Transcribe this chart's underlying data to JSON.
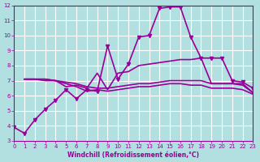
{
  "background_color": "#b2e0e0",
  "grid_color": "#ffffff",
  "line_color": "#990099",
  "xlabel": "Windchill (Refroidissement éolien,°C)",
  "xlim": [
    0,
    23
  ],
  "ylim": [
    3,
    12
  ],
  "xticks": [
    0,
    1,
    2,
    3,
    4,
    5,
    6,
    7,
    8,
    9,
    10,
    11,
    12,
    13,
    14,
    15,
    16,
    17,
    18,
    19,
    20,
    21,
    22,
    23
  ],
  "yticks": [
    3,
    4,
    5,
    6,
    7,
    8,
    9,
    10,
    11,
    12
  ],
  "lines": [
    {
      "x": [
        0,
        1,
        2,
        3,
        4,
        5,
        6,
        7,
        8,
        9,
        10,
        11,
        12,
        13,
        14,
        15,
        16,
        17,
        18,
        19,
        20,
        21,
        22,
        23
      ],
      "y": [
        3.9,
        3.5,
        4.4,
        5.1,
        5.7,
        6.4,
        5.8,
        6.4,
        6.3,
        9.3,
        7.1,
        8.1,
        9.9,
        10.0,
        11.8,
        11.9,
        11.9,
        9.9,
        8.5,
        8.5,
        8.5,
        7.0,
        6.9,
        6.5
      ],
      "marker": "v",
      "markersize": 3,
      "linewidth": 1.2
    },
    {
      "x": [
        1,
        2,
        3,
        4,
        5,
        6,
        7,
        8,
        9,
        10,
        11,
        12,
        13,
        14,
        15,
        16,
        17,
        18,
        19,
        20,
        21,
        22,
        23
      ],
      "y": [
        7.1,
        7.1,
        7.0,
        7.0,
        6.6,
        6.7,
        6.5,
        7.5,
        6.4,
        7.5,
        7.6,
        8.0,
        8.1,
        8.2,
        8.3,
        8.4,
        8.4,
        8.5,
        6.8,
        6.8,
        6.8,
        6.8,
        6.2
      ],
      "marker": null,
      "markersize": 0,
      "linewidth": 1.2
    },
    {
      "x": [
        1,
        2,
        3,
        4,
        5,
        6,
        7,
        8,
        9,
        10,
        11,
        12,
        13,
        14,
        15,
        16,
        17,
        18,
        19,
        20,
        21,
        22,
        23
      ],
      "y": [
        7.1,
        7.1,
        7.1,
        7.0,
        6.9,
        6.8,
        6.6,
        6.5,
        6.5,
        6.6,
        6.7,
        6.8,
        6.8,
        6.9,
        7.0,
        7.0,
        7.0,
        7.0,
        6.8,
        6.8,
        6.8,
        6.7,
        6.2
      ],
      "marker": null,
      "markersize": 0,
      "linewidth": 1.2
    },
    {
      "x": [
        1,
        2,
        3,
        4,
        5,
        6,
        7,
        8,
        9,
        10,
        11,
        12,
        13,
        14,
        15,
        16,
        17,
        18,
        19,
        20,
        21,
        22,
        23
      ],
      "y": [
        7.1,
        7.1,
        7.1,
        7.0,
        6.8,
        6.6,
        6.3,
        6.4,
        6.3,
        6.4,
        6.5,
        6.6,
        6.6,
        6.7,
        6.8,
        6.8,
        6.7,
        6.7,
        6.5,
        6.5,
        6.5,
        6.4,
        6.1
      ],
      "marker": null,
      "markersize": 0,
      "linewidth": 1.2
    }
  ]
}
